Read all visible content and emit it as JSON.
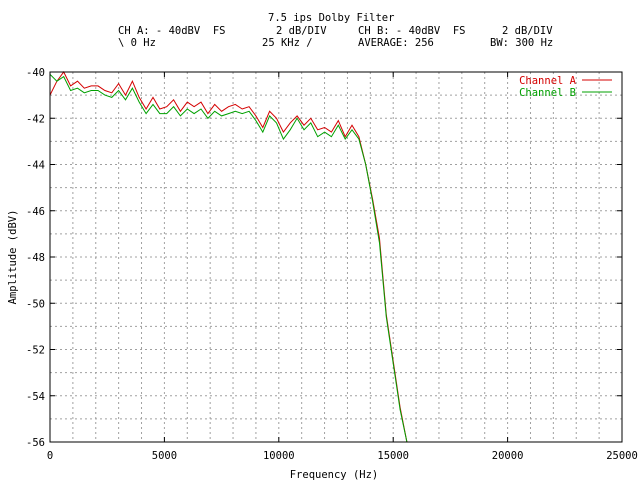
{
  "header": {
    "title": "7.5 ips Dolby Filter",
    "row1": [
      "CH A: - 40dBV  FS",
      "2 dB/DIV",
      "CH B: - 40dBV  FS",
      "2 dB/DIV"
    ],
    "row2": [
      "\\ 0 Hz",
      "25 KHz /",
      "AVERAGE: 256",
      "BW: 300 Hz"
    ]
  },
  "colors": {
    "channel_a": "#d40000",
    "channel_b": "#00a000",
    "grid": "#a0a0a0",
    "axis": "#000000"
  },
  "chart_data": {
    "type": "line",
    "xlabel": "Frequency (Hz)",
    "ylabel": "Amplitude (dBV)",
    "xlim": [
      0,
      25000
    ],
    "ylim": [
      -56,
      -40
    ],
    "x_ticks": [
      0,
      5000,
      10000,
      15000,
      20000,
      25000
    ],
    "y_ticks": [
      -40,
      -42,
      -44,
      -46,
      -48,
      -50,
      -52,
      -54,
      -56
    ],
    "grid": true,
    "legend_position": "top-right",
    "series": [
      {
        "name": "Channel A",
        "x": [
          0,
          300,
          600,
          900,
          1200,
          1500,
          1800,
          2100,
          2400,
          2700,
          3000,
          3300,
          3600,
          3900,
          4200,
          4500,
          4800,
          5100,
          5400,
          5700,
          6000,
          6300,
          6600,
          6900,
          7200,
          7500,
          7800,
          8100,
          8400,
          8700,
          9000,
          9300,
          9600,
          9900,
          10200,
          10500,
          10800,
          11100,
          11400,
          11700,
          12000,
          12300,
          12600,
          12900,
          13200,
          13500,
          13800,
          14100,
          14400,
          14700,
          15000,
          15300,
          15600,
          15900,
          16000,
          18000,
          20000,
          22000,
          25000
        ],
        "values": [
          -41.0,
          -40.4,
          -40.0,
          -40.6,
          -40.4,
          -40.7,
          -40.6,
          -40.6,
          -40.8,
          -40.9,
          -40.5,
          -41.0,
          -40.4,
          -41.1,
          -41.6,
          -41.1,
          -41.6,
          -41.5,
          -41.2,
          -41.7,
          -41.3,
          -41.5,
          -41.3,
          -41.8,
          -41.4,
          -41.7,
          -41.5,
          -41.4,
          -41.6,
          -41.5,
          -41.9,
          -42.4,
          -41.7,
          -42.0,
          -42.6,
          -42.2,
          -41.9,
          -42.3,
          -42.0,
          -42.5,
          -42.4,
          -42.6,
          -42.1,
          -42.8,
          -42.3,
          -42.8,
          -44.0,
          -45.5,
          -47.2,
          -50.5,
          -52.5,
          -54.5,
          -56.0,
          -56.0,
          -56.0,
          -56.0,
          -56.0,
          -56.0,
          -56.0
        ]
      },
      {
        "name": "Channel B",
        "x": [
          0,
          300,
          600,
          900,
          1200,
          1500,
          1800,
          2100,
          2400,
          2700,
          3000,
          3300,
          3600,
          3900,
          4200,
          4500,
          4800,
          5100,
          5400,
          5700,
          6000,
          6300,
          6600,
          6900,
          7200,
          7500,
          7800,
          8100,
          8400,
          8700,
          9000,
          9300,
          9600,
          9900,
          10200,
          10500,
          10800,
          11100,
          11400,
          11700,
          12000,
          12300,
          12600,
          12900,
          13200,
          13500,
          13800,
          14100,
          14400,
          14700,
          15000,
          15300,
          15600,
          15900,
          16000,
          18000,
          20000,
          22000,
          25000
        ],
        "values": [
          -40.1,
          -40.4,
          -40.2,
          -40.8,
          -40.7,
          -40.9,
          -40.8,
          -40.8,
          -41.0,
          -41.1,
          -40.8,
          -41.2,
          -40.7,
          -41.3,
          -41.8,
          -41.4,
          -41.8,
          -41.8,
          -41.5,
          -41.9,
          -41.6,
          -41.8,
          -41.6,
          -42.0,
          -41.7,
          -41.9,
          -41.8,
          -41.7,
          -41.8,
          -41.7,
          -42.1,
          -42.6,
          -41.9,
          -42.2,
          -42.9,
          -42.5,
          -42.0,
          -42.5,
          -42.2,
          -42.8,
          -42.6,
          -42.8,
          -42.3,
          -42.9,
          -42.5,
          -42.9,
          -44.0,
          -45.6,
          -47.4,
          -50.6,
          -52.6,
          -54.6,
          -56.0,
          -56.0,
          -56.0,
          -56.0,
          -56.0,
          -56.0,
          -56.0
        ]
      }
    ]
  }
}
